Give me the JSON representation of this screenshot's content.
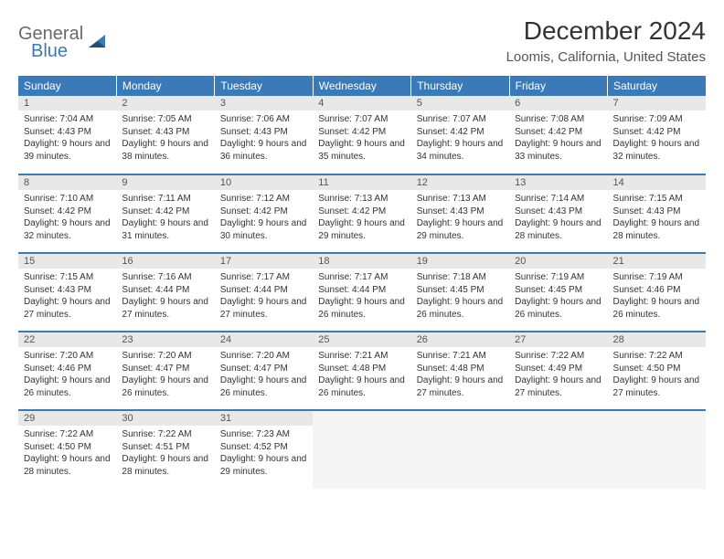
{
  "logo": {
    "word1": "General",
    "word2": "Blue"
  },
  "title": "December 2024",
  "location": "Loomis, California, United States",
  "colors": {
    "brand_blue": "#3a7ab8",
    "header_row_bg": "#3a7ab8",
    "daynum_bg": "#e8e8e8",
    "row_sep": "#3a7ab8",
    "logo_grey": "#6a6a6a"
  },
  "weekdays": [
    "Sunday",
    "Monday",
    "Tuesday",
    "Wednesday",
    "Thursday",
    "Friday",
    "Saturday"
  ],
  "weeks": [
    [
      {
        "n": 1,
        "sr": "7:04 AM",
        "ss": "4:43 PM",
        "dl": "9 hours and 39 minutes."
      },
      {
        "n": 2,
        "sr": "7:05 AM",
        "ss": "4:43 PM",
        "dl": "9 hours and 38 minutes."
      },
      {
        "n": 3,
        "sr": "7:06 AM",
        "ss": "4:43 PM",
        "dl": "9 hours and 36 minutes."
      },
      {
        "n": 4,
        "sr": "7:07 AM",
        "ss": "4:42 PM",
        "dl": "9 hours and 35 minutes."
      },
      {
        "n": 5,
        "sr": "7:07 AM",
        "ss": "4:42 PM",
        "dl": "9 hours and 34 minutes."
      },
      {
        "n": 6,
        "sr": "7:08 AM",
        "ss": "4:42 PM",
        "dl": "9 hours and 33 minutes."
      },
      {
        "n": 7,
        "sr": "7:09 AM",
        "ss": "4:42 PM",
        "dl": "9 hours and 32 minutes."
      }
    ],
    [
      {
        "n": 8,
        "sr": "7:10 AM",
        "ss": "4:42 PM",
        "dl": "9 hours and 32 minutes."
      },
      {
        "n": 9,
        "sr": "7:11 AM",
        "ss": "4:42 PM",
        "dl": "9 hours and 31 minutes."
      },
      {
        "n": 10,
        "sr": "7:12 AM",
        "ss": "4:42 PM",
        "dl": "9 hours and 30 minutes."
      },
      {
        "n": 11,
        "sr": "7:13 AM",
        "ss": "4:42 PM",
        "dl": "9 hours and 29 minutes."
      },
      {
        "n": 12,
        "sr": "7:13 AM",
        "ss": "4:43 PM",
        "dl": "9 hours and 29 minutes."
      },
      {
        "n": 13,
        "sr": "7:14 AM",
        "ss": "4:43 PM",
        "dl": "9 hours and 28 minutes."
      },
      {
        "n": 14,
        "sr": "7:15 AM",
        "ss": "4:43 PM",
        "dl": "9 hours and 28 minutes."
      }
    ],
    [
      {
        "n": 15,
        "sr": "7:15 AM",
        "ss": "4:43 PM",
        "dl": "9 hours and 27 minutes."
      },
      {
        "n": 16,
        "sr": "7:16 AM",
        "ss": "4:44 PM",
        "dl": "9 hours and 27 minutes."
      },
      {
        "n": 17,
        "sr": "7:17 AM",
        "ss": "4:44 PM",
        "dl": "9 hours and 27 minutes."
      },
      {
        "n": 18,
        "sr": "7:17 AM",
        "ss": "4:44 PM",
        "dl": "9 hours and 26 minutes."
      },
      {
        "n": 19,
        "sr": "7:18 AM",
        "ss": "4:45 PM",
        "dl": "9 hours and 26 minutes."
      },
      {
        "n": 20,
        "sr": "7:19 AM",
        "ss": "4:45 PM",
        "dl": "9 hours and 26 minutes."
      },
      {
        "n": 21,
        "sr": "7:19 AM",
        "ss": "4:46 PM",
        "dl": "9 hours and 26 minutes."
      }
    ],
    [
      {
        "n": 22,
        "sr": "7:20 AM",
        "ss": "4:46 PM",
        "dl": "9 hours and 26 minutes."
      },
      {
        "n": 23,
        "sr": "7:20 AM",
        "ss": "4:47 PM",
        "dl": "9 hours and 26 minutes."
      },
      {
        "n": 24,
        "sr": "7:20 AM",
        "ss": "4:47 PM",
        "dl": "9 hours and 26 minutes."
      },
      {
        "n": 25,
        "sr": "7:21 AM",
        "ss": "4:48 PM",
        "dl": "9 hours and 26 minutes."
      },
      {
        "n": 26,
        "sr": "7:21 AM",
        "ss": "4:48 PM",
        "dl": "9 hours and 27 minutes."
      },
      {
        "n": 27,
        "sr": "7:22 AM",
        "ss": "4:49 PM",
        "dl": "9 hours and 27 minutes."
      },
      {
        "n": 28,
        "sr": "7:22 AM",
        "ss": "4:50 PM",
        "dl": "9 hours and 27 minutes."
      }
    ],
    [
      {
        "n": 29,
        "sr": "7:22 AM",
        "ss": "4:50 PM",
        "dl": "9 hours and 28 minutes."
      },
      {
        "n": 30,
        "sr": "7:22 AM",
        "ss": "4:51 PM",
        "dl": "9 hours and 28 minutes."
      },
      {
        "n": 31,
        "sr": "7:23 AM",
        "ss": "4:52 PM",
        "dl": "9 hours and 29 minutes."
      },
      null,
      null,
      null,
      null
    ]
  ],
  "labels": {
    "sunrise": "Sunrise:",
    "sunset": "Sunset:",
    "daylight": "Daylight:"
  }
}
